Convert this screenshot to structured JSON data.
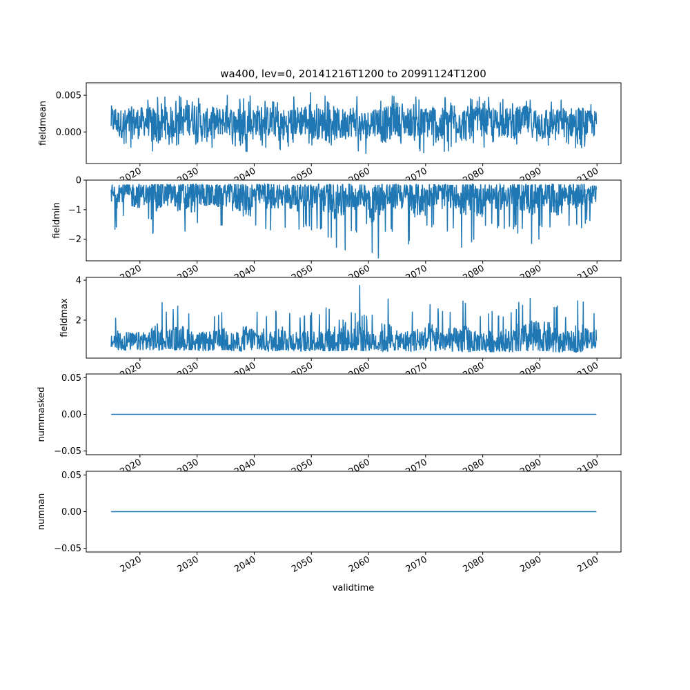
{
  "chart_data": {
    "type": "line",
    "title": "wa400, lev=0, 20141216T1200 to 20991124T1200",
    "xlabel": "validtime",
    "x_range": [
      2014.96,
      2099.9
    ],
    "xlim": [
      2010.6,
      2104.2
    ],
    "xticks": [
      2020,
      2030,
      2040,
      2050,
      2060,
      2070,
      2080,
      2090,
      2100
    ],
    "xtick_labels": [
      "2020",
      "2030",
      "2040",
      "2050",
      "2060",
      "2070",
      "2080",
      "2090",
      "2100"
    ],
    "color": "#1f77b4",
    "envelope_years": [
      2015,
      2017,
      2019,
      2021,
      2023,
      2025,
      2027,
      2029,
      2031,
      2033,
      2035,
      2037,
      2039,
      2041,
      2043,
      2045,
      2047,
      2049,
      2051,
      2053,
      2055,
      2057,
      2059,
      2061,
      2063,
      2065,
      2067,
      2069,
      2071,
      2073,
      2075,
      2077,
      2079,
      2081,
      2083,
      2085,
      2087,
      2089,
      2091,
      2093,
      2095,
      2097,
      2099
    ],
    "panels": [
      {
        "ylabel": "fieldmean",
        "ylim": [
          -0.0043,
          0.0067
        ],
        "yticks": [
          0.0,
          0.005
        ],
        "ytick_labels": [
          "0.000",
          "0.005"
        ],
        "low": [
          -0.0018,
          -0.0022,
          -0.0025,
          -0.002,
          -0.0035,
          -0.0025,
          -0.002,
          -0.0022,
          -0.003,
          -0.0025,
          -0.002,
          -0.0022,
          -0.0028,
          -0.002,
          -0.0022,
          -0.003,
          -0.002,
          -0.0022,
          -0.0025,
          -0.002,
          -0.0028,
          -0.0022,
          -0.003,
          -0.002,
          -0.0032,
          -0.0022,
          -0.002,
          -0.003,
          -0.0025,
          -0.0035,
          -0.0022,
          -0.003,
          -0.002,
          -0.0022,
          -0.002,
          -0.0025,
          -0.002,
          -0.0022,
          -0.0028,
          -0.002,
          -0.0022,
          -0.0025,
          -0.002
        ],
        "high": [
          0.005,
          0.0045,
          0.005,
          0.0048,
          0.0052,
          0.005,
          0.005,
          0.0062,
          0.0048,
          0.005,
          0.0052,
          0.0048,
          0.005,
          0.0052,
          0.005,
          0.0048,
          0.005,
          0.0055,
          0.0048,
          0.005,
          0.0048,
          0.0052,
          0.0045,
          0.005,
          0.0052,
          0.0058,
          0.0048,
          0.005,
          0.0055,
          0.005,
          0.0058,
          0.0052,
          0.0048,
          0.005,
          0.0045,
          0.0048,
          0.005,
          0.0048,
          0.005,
          0.0045,
          0.0048,
          0.005,
          0.0042
        ]
      },
      {
        "ylabel": "fieldmin",
        "ylim": [
          -2.73,
          0.0
        ],
        "yticks": [
          -2,
          -1,
          0
        ],
        "ytick_labels": [
          "−2",
          "−1",
          "0"
        ],
        "low": [
          -1.7,
          -1.3,
          -1.7,
          -1.5,
          -2.0,
          -1.6,
          -1.9,
          -2.05,
          -1.6,
          -1.7,
          -1.6,
          -2.0,
          -2.3,
          -1.6,
          -1.8,
          -1.7,
          -1.9,
          -1.6,
          -1.8,
          -2.0,
          -2.45,
          -1.9,
          -1.6,
          -2.65,
          -1.9,
          -1.8,
          -2.2,
          -2.3,
          -1.6,
          -1.8,
          -1.7,
          -2.3,
          -2.35,
          -1.6,
          -1.8,
          -1.7,
          -1.9,
          -2.2,
          -1.6,
          -2.3,
          -1.6,
          -1.7,
          -1.4
        ],
        "high": [
          -0.15,
          -0.15,
          -0.15,
          -0.16,
          -0.14,
          -0.15,
          -0.15,
          -0.14,
          -0.15,
          -0.16,
          -0.15,
          -0.14,
          -0.15,
          -0.15,
          -0.14,
          -0.15,
          -0.16,
          -0.15,
          -0.14,
          -0.15,
          -0.15,
          -0.14,
          -0.15,
          -0.16,
          -0.15,
          -0.14,
          -0.15,
          -0.15,
          -0.14,
          -0.15,
          -0.16,
          -0.15,
          -0.14,
          -0.15,
          -0.15,
          -0.14,
          -0.15,
          -0.16,
          -0.15,
          -0.14,
          -0.15,
          -0.15,
          -0.2
        ]
      },
      {
        "ylabel": "fieldmax",
        "ylim": [
          0.1,
          4.14
        ],
        "yticks": [
          2,
          4
        ],
        "ytick_labels": [
          "2",
          "4"
        ],
        "low": [
          0.55,
          0.5,
          0.55,
          0.5,
          0.5,
          0.55,
          0.5,
          0.5,
          0.45,
          0.5,
          0.5,
          0.45,
          0.5,
          0.5,
          0.45,
          0.5,
          0.5,
          0.45,
          0.5,
          0.45,
          0.45,
          0.5,
          0.45,
          0.5,
          0.45,
          0.5,
          0.45,
          0.5,
          0.45,
          0.5,
          0.45,
          0.4,
          0.45,
          0.4,
          0.45,
          0.4,
          0.45,
          0.4,
          0.45,
          0.4,
          0.45,
          0.4,
          0.6
        ],
        "high": [
          2.3,
          2.4,
          2.2,
          2.5,
          3.1,
          2.6,
          2.9,
          2.6,
          2.3,
          2.4,
          2.7,
          2.3,
          2.9,
          2.6,
          2.5,
          2.8,
          2.5,
          2.4,
          2.5,
          2.7,
          3.6,
          2.6,
          4.0,
          2.4,
          3.2,
          2.4,
          2.5,
          2.8,
          3.2,
          2.6,
          2.7,
          3.0,
          2.4,
          2.5,
          2.4,
          2.7,
          3.1,
          3.5,
          3.3,
          2.8,
          2.4,
          3.3,
          2.5
        ]
      },
      {
        "ylabel": "nummasked",
        "ylim": [
          -0.055,
          0.055
        ],
        "yticks": [
          -0.05,
          0.0,
          0.05
        ],
        "ytick_labels": [
          "−0.05",
          "0.00",
          "0.05"
        ],
        "constant": 0
      },
      {
        "ylabel": "numnan",
        "ylim": [
          -0.055,
          0.055
        ],
        "yticks": [
          -0.05,
          0.0,
          0.05
        ],
        "ytick_labels": [
          "−0.05",
          "0.00",
          "0.05"
        ],
        "constant": 0
      }
    ]
  }
}
